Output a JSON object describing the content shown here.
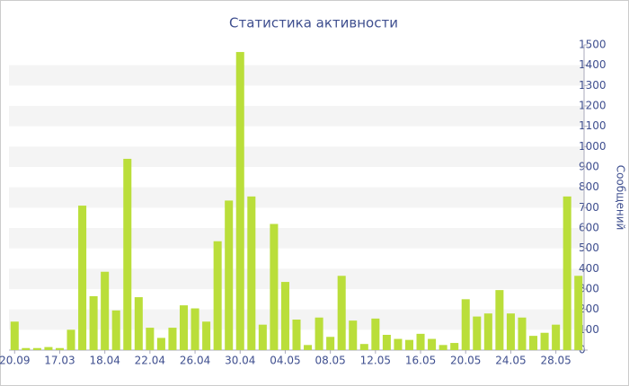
{
  "chart_data": {
    "type": "bar",
    "title": "Статистика активности",
    "y_label": "Сообщений",
    "categories": [
      "20.09",
      null,
      null,
      null,
      "17.03",
      null,
      null,
      null,
      "18.04",
      null,
      null,
      null,
      "22.04",
      null,
      null,
      null,
      "26.04",
      null,
      null,
      null,
      "30.04",
      null,
      null,
      null,
      "04.05",
      null,
      null,
      null,
      "08.05",
      null,
      null,
      null,
      "12.05",
      null,
      null,
      null,
      "16.05",
      null,
      null,
      null,
      "20.05",
      null,
      null,
      null,
      "24.05",
      null,
      null,
      null,
      "28.05",
      null,
      null
    ],
    "values": [
      140,
      10,
      10,
      15,
      10,
      100,
      710,
      265,
      385,
      195,
      940,
      260,
      110,
      60,
      110,
      220,
      205,
      140,
      535,
      735,
      1465,
      755,
      125,
      620,
      335,
      150,
      25,
      160,
      65,
      365,
      145,
      30,
      155,
      75,
      55,
      50,
      80,
      55,
      25,
      35,
      250,
      165,
      180,
      295,
      180,
      160,
      70,
      85,
      125,
      755,
      365
    ],
    "color": "#bade3a",
    "ylim": [
      0,
      1500
    ],
    "yticks": [
      0,
      100,
      200,
      300,
      400,
      500,
      600,
      700,
      800,
      900,
      1000,
      1100,
      1200,
      1300,
      1400,
      1500
    ],
    "grid": true
  }
}
